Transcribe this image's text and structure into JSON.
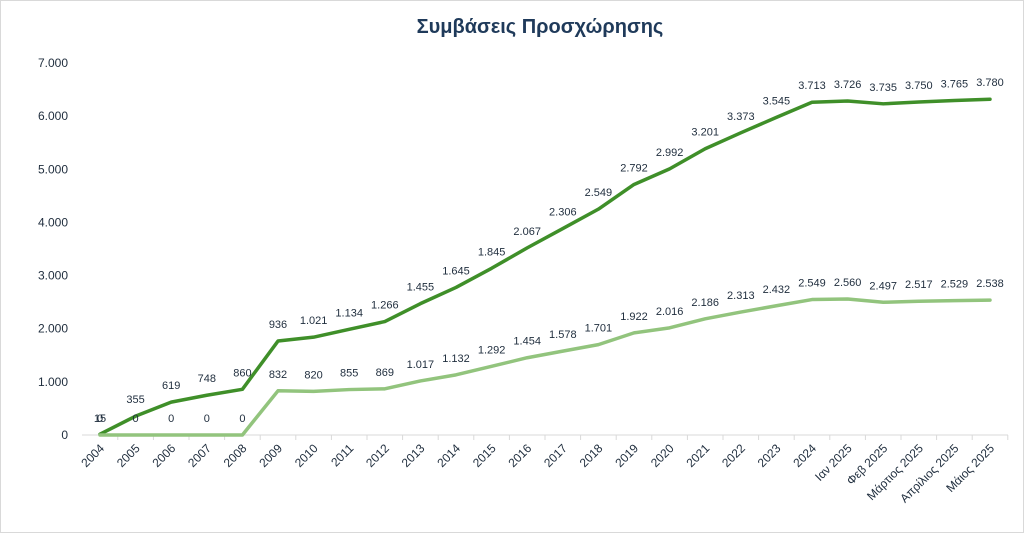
{
  "chart_data": {
    "type": "line",
    "title": "Συμβάσεις Προσχώρησης",
    "xlabel": "",
    "ylabel": "",
    "ylim": [
      0,
      7000
    ],
    "yticks": [
      "0",
      "1.000",
      "2.000",
      "3.000",
      "4.000",
      "5.000",
      "6.000",
      "7.000"
    ],
    "grid": "none",
    "legend": "none",
    "categories": [
      "2004",
      "2005",
      "2006",
      "2007",
      "2008",
      "2009",
      "2010",
      "2011",
      "2012",
      "2013",
      "2014",
      "2015",
      "2016",
      "2017",
      "2018",
      "2019",
      "2020",
      "2021",
      "2022",
      "2023",
      "2024",
      "Ιαν 2025",
      "Φεβ 2025",
      "Μάρτιος 2025",
      "Απρίλιος 2025",
      "Μάιος 2025"
    ],
    "series": [
      {
        "values": [
          15,
          355,
          619,
          748,
          860,
          1768,
          1841,
          1989,
          2135,
          2472,
          2777,
          3137,
          3521,
          3884,
          4250,
          4714,
          5008,
          5387,
          5686,
          5977,
          6262,
          6286,
          6232,
          6267,
          6294,
          6318
        ],
        "labels": [
          "15",
          "355",
          "619",
          "748",
          "860",
          "936",
          "1.021",
          "1.134",
          "1.266",
          "1.455",
          "1.645",
          "1.845",
          "2.067",
          "2.306",
          "2.549",
          "2.792",
          "2.992",
          "3.201",
          "3.373",
          "3.545",
          "3.713",
          "3.726",
          "3.735",
          "3.750",
          "3.765",
          "3.780"
        ],
        "color": "#3f8f29"
      },
      {
        "values": [
          0,
          0,
          0,
          0,
          0,
          832,
          820,
          855,
          869,
          1017,
          1132,
          1292,
          1454,
          1578,
          1701,
          1922,
          2016,
          2186,
          2313,
          2432,
          2549,
          2560,
          2497,
          2517,
          2529,
          2538
        ],
        "labels": [
          "0",
          "0",
          "0",
          "0",
          "0",
          "832",
          "820",
          "855",
          "869",
          "1.017",
          "1.132",
          "1.292",
          "1.454",
          "1.578",
          "1.701",
          "1.922",
          "2.016",
          "2.186",
          "2.313",
          "2.432",
          "2.549",
          "2.560",
          "2.497",
          "2.517",
          "2.529",
          "2.538"
        ],
        "color": "#92c47d"
      }
    ]
  }
}
